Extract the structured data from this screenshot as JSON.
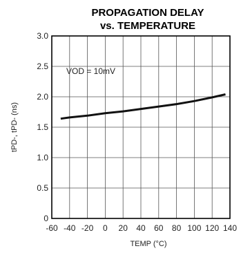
{
  "chart_data": {
    "type": "line",
    "title_line1": "PROPAGATION DELAY",
    "title_line2": "vs. TEMPERATURE",
    "xlabel": "TEMP (°C)",
    "ylabel": "tPD-, tPD- (ns)",
    "annotation": "VOD = 10mV",
    "x_ticks": [
      "-60",
      "-40",
      "-20",
      "0",
      "20",
      "40",
      "60",
      "80",
      "100",
      "120",
      "140"
    ],
    "y_ticks": [
      "0",
      "0.5",
      "1.0",
      "1.5",
      "2.0",
      "2.5",
      "3.0"
    ],
    "xlim": [
      -60,
      140
    ],
    "ylim": [
      0,
      3.0
    ],
    "grid": true,
    "series": [
      {
        "x": [
          -50,
          -40,
          -20,
          0,
          20,
          40,
          60,
          80,
          100,
          120,
          135
        ],
        "y": [
          1.64,
          1.66,
          1.69,
          1.73,
          1.76,
          1.8,
          1.84,
          1.88,
          1.93,
          1.99,
          2.04
        ]
      }
    ]
  }
}
